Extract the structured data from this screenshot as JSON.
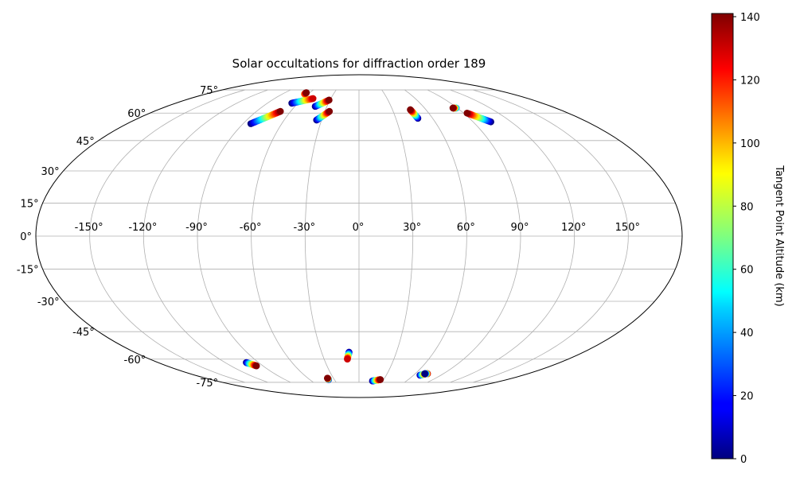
{
  "chart_data": {
    "type": "scatter",
    "projection": "mollweide",
    "title": "Solar occultations for diffraction order 189",
    "x_ticks": [
      -150,
      -120,
      -90,
      -60,
      -30,
      0,
      30,
      60,
      90,
      120,
      150
    ],
    "y_ticks": [
      -75,
      -60,
      -45,
      -30,
      -15,
      0,
      15,
      30,
      45,
      60,
      75
    ],
    "x_tick_labels": [
      "-150°",
      "-120°",
      "-90°",
      "-60°",
      "-30°",
      "0°",
      "30°",
      "60°",
      "90°",
      "120°",
      "150°"
    ],
    "y_tick_labels": [
      "-75°",
      "-60°",
      "-45°",
      "-30°",
      "-15°",
      "0°",
      "15°",
      "30°",
      "45°",
      "60°",
      "75°"
    ],
    "xlim": [
      -180,
      180
    ],
    "ylim": [
      -90,
      90
    ],
    "grid": true,
    "colormap": "jet",
    "colorbar": {
      "label": "Tangent Point Altitude (km)",
      "range": [
        0,
        141
      ],
      "ticks": [
        0,
        20,
        40,
        60,
        80,
        100,
        120,
        140
      ],
      "tick_labels": [
        "0",
        "20",
        "40",
        "60",
        "80",
        "100",
        "120",
        "140"
      ]
    },
    "tracks": [
      {
        "lon_start": -84,
        "lat_start": 54,
        "alt_start": 0,
        "lon_end": -69,
        "lat_end": 61,
        "alt_end": 141
      },
      {
        "lon_start": -66,
        "lat_start": 66,
        "alt_start": 0,
        "lon_end": -49,
        "lat_end": 69,
        "alt_end": 130
      },
      {
        "lon_start": -64,
        "lat_start": 72,
        "alt_start": 100,
        "lon_end": -64,
        "lat_end": 73,
        "alt_end": 141
      },
      {
        "lon_start": -41,
        "lat_start": 64,
        "alt_start": 0,
        "lon_end": -31,
        "lat_end": 68,
        "alt_end": 141
      },
      {
        "lon_start": -34,
        "lat_start": 56,
        "alt_start": 0,
        "lon_end": -26,
        "lat_end": 61,
        "alt_end": 141
      },
      {
        "lon_start": 48,
        "lat_start": 57,
        "alt_start": 0,
        "lon_end": 46,
        "lat_end": 62,
        "alt_end": 141
      },
      {
        "lon_start": 104,
        "lat_start": 55,
        "alt_start": 0,
        "lon_end": 93,
        "lat_end": 60,
        "alt_end": 141
      },
      {
        "lon_start": 89,
        "lat_start": 63,
        "alt_start": 30,
        "lon_end": 86,
        "lat_end": 63,
        "alt_end": 141
      },
      {
        "lon_start": -101,
        "lat_start": -62,
        "alt_start": 0,
        "lon_end": -96,
        "lat_end": -64,
        "alt_end": 141
      },
      {
        "lon_start": -37,
        "lat_start": -73,
        "alt_start": 0,
        "lon_end": -37,
        "lat_end": -72,
        "alt_end": 141
      },
      {
        "lon_start": -8,
        "lat_start": -56,
        "alt_start": 0,
        "lon_end": -10,
        "lat_end": -60,
        "alt_end": 130
      },
      {
        "lon_start": 17,
        "lat_start": -74,
        "alt_start": 0,
        "lon_end": 26,
        "lat_end": -73,
        "alt_end": 141
      },
      {
        "lon_start": 67,
        "lat_start": -70,
        "alt_start": 0,
        "lon_end": 72,
        "lat_end": -69,
        "alt_end": 141
      },
      {
        "lon_start": 73,
        "lat_start": -69,
        "alt_start": 141,
        "lon_end": 70,
        "lat_end": -69,
        "alt_end": 0
      }
    ]
  }
}
